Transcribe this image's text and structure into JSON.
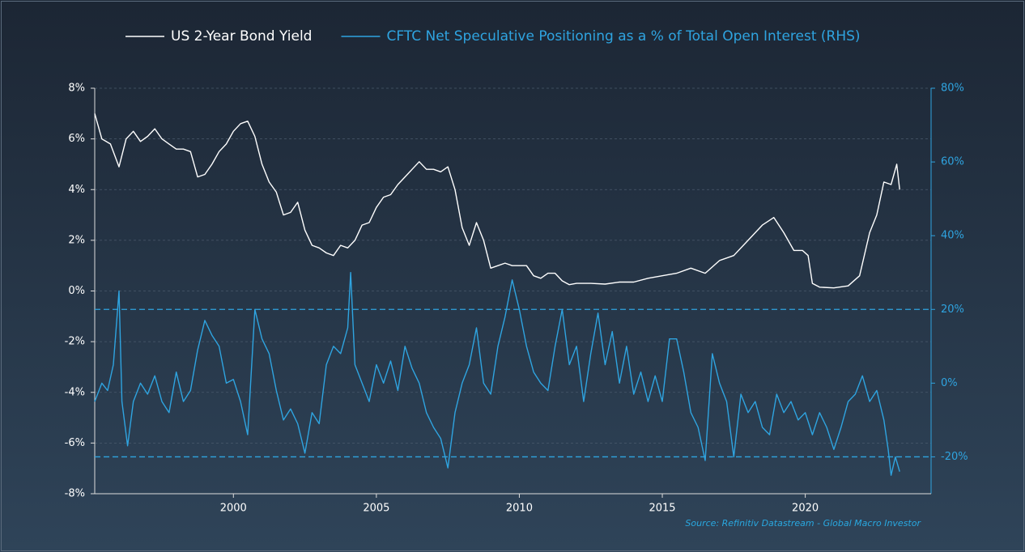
{
  "chart_data": {
    "type": "line",
    "source": "Source: Refinitiv Datastream - Global Macro Investor",
    "xlim": [
      1995.15,
      2024.4
    ],
    "xticks": [
      2000,
      2005,
      2010,
      2015,
      2020
    ],
    "ylim": [
      -8,
      8
    ],
    "yticks": [
      {
        "value": 8,
        "label": "8%"
      },
      {
        "value": 6,
        "label": "6%"
      },
      {
        "value": 4,
        "label": "4%"
      },
      {
        "value": 2,
        "label": "2%"
      },
      {
        "value": 0,
        "label": "0%"
      },
      {
        "value": -2,
        "label": "-2%"
      },
      {
        "value": -4,
        "label": "-4%"
      },
      {
        "value": -6,
        "label": "-6%"
      },
      {
        "value": -8,
        "label": "-8%"
      }
    ],
    "y2lim": [
      -30,
      80
    ],
    "y2ticks": [
      {
        "value": 80,
        "label": "80%"
      },
      {
        "value": 60,
        "label": "60%"
      },
      {
        "value": 40,
        "label": "40%"
      },
      {
        "value": 20,
        "label": "20%"
      },
      {
        "value": 0,
        "label": "0%"
      },
      {
        "value": -20,
        "label": "-20%"
      }
    ],
    "grid": true,
    "reference_lines": [
      20,
      -20
    ],
    "reference_color": "#2fa4e0",
    "series": [
      {
        "name": "US 2-Year Bond Yield",
        "color": "#ffffff",
        "x": [
          1995.15,
          1995.4,
          1995.7,
          1996.0,
          1996.25,
          1996.5,
          1996.75,
          1997.0,
          1997.25,
          1997.5,
          1997.75,
          1998.0,
          1998.25,
          1998.5,
          1998.75,
          1999.0,
          1999.25,
          1999.5,
          1999.75,
          2000.0,
          2000.25,
          2000.5,
          2000.75,
          2001.0,
          2001.25,
          2001.5,
          2001.75,
          2002.0,
          2002.25,
          2002.5,
          2002.75,
          2003.0,
          2003.25,
          2003.5,
          2003.75,
          2004.0,
          2004.25,
          2004.5,
          2004.75,
          2005.0,
          2005.25,
          2005.5,
          2005.75,
          2006.0,
          2006.25,
          2006.5,
          2006.75,
          2007.0,
          2007.25,
          2007.5,
          2007.75,
          2008.0,
          2008.25,
          2008.5,
          2008.75,
          2009.0,
          2009.25,
          2009.5,
          2009.75,
          2010.0,
          2010.25,
          2010.5,
          2010.75,
          2011.0,
          2011.25,
          2011.5,
          2011.75,
          2012.0,
          2012.5,
          2013.0,
          2013.5,
          2014.0,
          2014.5,
          2015.0,
          2015.5,
          2016.0,
          2016.5,
          2017.0,
          2017.5,
          2018.0,
          2018.5,
          2018.9,
          2019.25,
          2019.6,
          2019.9,
          2020.1,
          2020.25,
          2020.5,
          2021.0,
          2021.5,
          2021.9,
          2022.25,
          2022.5,
          2022.75,
          2023.0,
          2023.2,
          2023.3
        ],
        "values": [
          7.0,
          6.0,
          5.8,
          4.9,
          6.0,
          6.3,
          5.9,
          6.1,
          6.4,
          6.0,
          5.8,
          5.6,
          5.6,
          5.5,
          4.5,
          4.6,
          5.0,
          5.5,
          5.8,
          6.3,
          6.6,
          6.7,
          6.1,
          5.0,
          4.3,
          3.9,
          3.0,
          3.1,
          3.5,
          2.4,
          1.8,
          1.7,
          1.5,
          1.4,
          1.8,
          1.7,
          2.0,
          2.6,
          2.7,
          3.3,
          3.7,
          3.8,
          4.2,
          4.5,
          4.8,
          5.1,
          4.8,
          4.8,
          4.7,
          4.9,
          4.0,
          2.5,
          1.8,
          2.7,
          2.0,
          0.9,
          1.0,
          1.1,
          1.0,
          1.0,
          1.0,
          0.6,
          0.5,
          0.7,
          0.7,
          0.4,
          0.25,
          0.3,
          0.3,
          0.27,
          0.35,
          0.35,
          0.5,
          0.6,
          0.7,
          0.9,
          0.7,
          1.2,
          1.4,
          2.0,
          2.6,
          2.9,
          2.3,
          1.6,
          1.6,
          1.4,
          0.3,
          0.15,
          0.12,
          0.2,
          0.6,
          2.3,
          3.0,
          4.3,
          4.2,
          5.0,
          4.0
        ]
      },
      {
        "name": "CFTC Net Speculative Positioning as a % of Total Open Interest (RHS)",
        "color": "#2fa4e0",
        "axis": "y2",
        "x": [
          1995.15,
          1995.4,
          1995.6,
          1995.8,
          1996.0,
          1996.1,
          1996.3,
          1996.5,
          1996.75,
          1997.0,
          1997.25,
          1997.5,
          1997.75,
          1998.0,
          1998.25,
          1998.5,
          1998.75,
          1999.0,
          1999.25,
          1999.5,
          1999.75,
          2000.0,
          2000.25,
          2000.5,
          2000.75,
          2001.0,
          2001.25,
          2001.5,
          2001.75,
          2002.0,
          2002.25,
          2002.5,
          2002.75,
          2003.0,
          2003.25,
          2003.5,
          2003.75,
          2004.0,
          2004.1,
          2004.25,
          2004.5,
          2004.75,
          2005.0,
          2005.25,
          2005.5,
          2005.75,
          2006.0,
          2006.25,
          2006.5,
          2006.75,
          2007.0,
          2007.25,
          2007.5,
          2007.75,
          2008.0,
          2008.25,
          2008.5,
          2008.75,
          2009.0,
          2009.25,
          2009.5,
          2009.75,
          2010.0,
          2010.25,
          2010.5,
          2010.75,
          2011.0,
          2011.25,
          2011.5,
          2011.75,
          2012.0,
          2012.25,
          2012.5,
          2012.75,
          2013.0,
          2013.25,
          2013.5,
          2013.75,
          2014.0,
          2014.25,
          2014.5,
          2014.75,
          2015.0,
          2015.25,
          2015.5,
          2015.75,
          2016.0,
          2016.25,
          2016.5,
          2016.75,
          2017.0,
          2017.25,
          2017.5,
          2017.75,
          2018.0,
          2018.25,
          2018.5,
          2018.75,
          2019.0,
          2019.25,
          2019.5,
          2019.75,
          2020.0,
          2020.25,
          2020.5,
          2020.75,
          2021.0,
          2021.25,
          2021.5,
          2021.75,
          2022.0,
          2022.25,
          2022.5,
          2022.75,
          2022.9,
          2023.0,
          2023.15,
          2023.3
        ],
        "values": [
          -5,
          0,
          -2,
          5,
          25,
          -5,
          -17,
          -5,
          0,
          -3,
          2,
          -5,
          -8,
          3,
          -5,
          -2,
          9,
          17,
          13,
          10,
          0,
          1,
          -5,
          -14,
          20,
          12,
          8,
          -2,
          -10,
          -7,
          -11,
          -19,
          -8,
          -11,
          5,
          10,
          8,
          15,
          30,
          5,
          0,
          -5,
          5,
          0,
          6,
          -2,
          10,
          4,
          0,
          -8,
          -12,
          -15,
          -23,
          -8,
          0,
          5,
          15,
          0,
          -3,
          10,
          18,
          28,
          20,
          10,
          3,
          0,
          -2,
          10,
          20,
          5,
          10,
          -5,
          8,
          19,
          5,
          14,
          0,
          10,
          -3,
          3,
          -5,
          2,
          -5,
          12,
          12,
          3,
          -8,
          -12,
          -21,
          8,
          0,
          -5,
          -20,
          -3,
          -8,
          -5,
          -12,
          -14,
          -3,
          -8,
          -5,
          -10,
          -8,
          -14,
          -8,
          -12,
          -18,
          -12,
          -5,
          -3,
          2,
          -5,
          -2,
          -10,
          -18,
          -25,
          -20,
          -24
        ]
      }
    ]
  }
}
